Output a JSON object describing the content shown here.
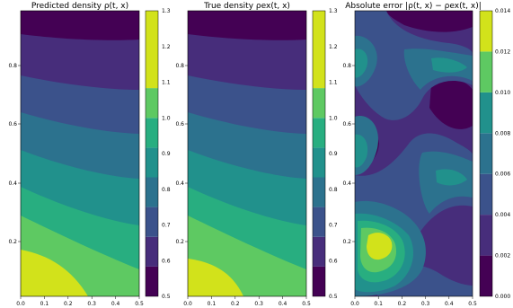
{
  "chart_data": [
    {
      "type": "heatmap",
      "title": "Predicted density ρ(t, x)",
      "xlim": [
        0.0,
        0.5
      ],
      "ylim": [
        0.0,
        0.97
      ],
      "xticks": [
        "0.0",
        "0.1",
        "0.2",
        "0.3",
        "0.4",
        "0.5"
      ],
      "yticks": [
        "0.2",
        "0.4",
        "0.6",
        "0.8"
      ],
      "levels": [
        0.5,
        0.6,
        0.7,
        0.8,
        0.9,
        1.0,
        1.1,
        1.2,
        1.3
      ],
      "colorbar_ticks": [
        "0.5",
        "0.6",
        "0.7",
        "0.8",
        "0.9",
        "1.0",
        "1.1",
        "1.2",
        "1.3"
      ]
    },
    {
      "type": "heatmap",
      "title": "True density ρex(t, x)",
      "xlim": [
        0.0,
        0.5
      ],
      "ylim": [
        0.0,
        0.97
      ],
      "xticks": [
        "0.0",
        "0.1",
        "0.2",
        "0.3",
        "0.4",
        "0.5"
      ],
      "yticks": [
        "0.2",
        "0.4",
        "0.6",
        "0.8"
      ],
      "levels": [
        0.5,
        0.6,
        0.7,
        0.8,
        0.9,
        1.0,
        1.1,
        1.2,
        1.3
      ],
      "colorbar_ticks": [
        "0.5",
        "0.6",
        "0.7",
        "0.8",
        "0.9",
        "1.0",
        "1.1",
        "1.2",
        "1.3"
      ]
    },
    {
      "type": "heatmap",
      "title": "Absolute error |ρ(t, x) − ρex(t, x)|",
      "xlim": [
        0.0,
        0.5
      ],
      "ylim": [
        0.0,
        0.97
      ],
      "xticks": [
        "0.0",
        "0.1",
        "0.2",
        "0.3",
        "0.4",
        "0.5"
      ],
      "yticks": [
        "0.2",
        "0.4",
        "0.6",
        "0.8"
      ],
      "levels": [
        0.0,
        0.002,
        0.004,
        0.006,
        0.008,
        0.01,
        0.012,
        0.014
      ],
      "colorbar_ticks": [
        "0.000",
        "0.002",
        "0.004",
        "0.006",
        "0.008",
        "0.010",
        "0.012",
        "0.014"
      ]
    }
  ],
  "colors": {
    "viridis": [
      "#440154",
      "#472d7b",
      "#3b528b",
      "#2c728e",
      "#21918c",
      "#28ae80",
      "#5ec962",
      "#addc30",
      "#d2e21b"
    ]
  }
}
